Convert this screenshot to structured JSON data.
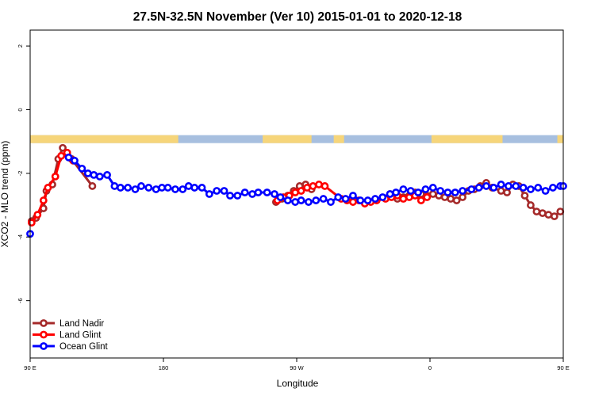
{
  "chart_data": {
    "type": "line",
    "title": "27.5N-32.5N November (Ver 10)   2015-01-01 to 2020-12-18",
    "xlabel": "Longitude",
    "ylabel": "XCO2 - MLO trend (ppm)",
    "xlim": [
      -90,
      270
    ],
    "ylim": [
      -7.8,
      2.5
    ],
    "x_ticks": [
      {
        "value": -90,
        "label": "90 E"
      },
      {
        "value": 0,
        "label": "180"
      },
      {
        "value": 90,
        "label": "90 W"
      },
      {
        "value": 180,
        "label": "0"
      },
      {
        "value": 270,
        "label": "90 E"
      }
    ],
    "y_ticks": [
      {
        "value": 2,
        "label": "2"
      },
      {
        "value": 0,
        "label": "0"
      },
      {
        "value": -2,
        "label": "-2"
      },
      {
        "value": -4,
        "label": "-4"
      },
      {
        "value": -6,
        "label": "-6"
      }
    ],
    "grid": false,
    "legend_position": "bottom-left",
    "land_ocean_strip": {
      "y_range": [
        -0.8,
        -1.05
      ],
      "land_color": "#f6d57a",
      "ocean_color": "#a7bfdf",
      "land_x_ranges": [
        [
          -90,
          10
        ],
        [
          67,
          100
        ],
        [
          115,
          122
        ],
        [
          181,
          229
        ],
        [
          266,
          270
        ]
      ]
    },
    "series": [
      {
        "name": "Land Nadir",
        "color": "#a52a2a",
        "x": [
          -89,
          -86,
          -81,
          -79,
          -75,
          -71,
          -68,
          -65,
          -62,
          -48,
          76,
          80,
          84,
          88,
          92,
          96,
          100,
          153,
          158,
          162,
          166,
          170,
          174,
          178,
          182,
          186,
          190,
          194,
          198,
          202,
          206,
          210,
          214,
          218,
          222,
          228,
          232,
          236,
          240,
          244,
          248,
          252,
          256,
          260,
          264,
          268
        ],
        "y": [
          -3.5,
          -3.4,
          -3.1,
          -2.55,
          -2.35,
          -1.55,
          -1.2,
          -1.4,
          -1.55,
          -2.4,
          -2.9,
          -2.8,
          -2.7,
          -2.55,
          -2.4,
          -2.35,
          -2.5,
          -2.65,
          -2.8,
          -2.75,
          -2.7,
          -2.6,
          -2.65,
          -2.7,
          -2.65,
          -2.7,
          -2.75,
          -2.8,
          -2.85,
          -2.75,
          -2.55,
          -2.5,
          -2.4,
          -2.3,
          -2.45,
          -2.55,
          -2.6,
          -2.35,
          -2.4,
          -2.7,
          -3.0,
          -3.2,
          -3.25,
          -3.3,
          -3.35,
          -3.2
        ]
      },
      {
        "name": "Land Glint",
        "color": "#ff0000",
        "x": [
          -89,
          -85,
          -81,
          -78,
          -73,
          -69,
          -65,
          -61,
          77,
          81,
          85,
          89,
          93,
          97,
          101,
          105,
          109,
          120,
          124,
          128,
          132,
          136,
          140,
          144,
          150,
          154,
          158,
          162,
          166,
          170,
          174,
          178
        ],
        "y": [
          -3.55,
          -3.3,
          -2.85,
          -2.45,
          -2.1,
          -1.45,
          -1.35,
          -1.6,
          -2.85,
          -2.75,
          -2.7,
          -2.6,
          -2.55,
          -2.45,
          -2.4,
          -2.35,
          -2.4,
          -2.8,
          -2.85,
          -2.9,
          -2.85,
          -2.95,
          -2.9,
          -2.85,
          -2.8,
          -2.75,
          -2.7,
          -2.8,
          -2.75,
          -2.7,
          -2.85,
          -2.75
        ]
      },
      {
        "name": "Ocean Glint",
        "color": "#0000ff",
        "x": [
          -90,
          -64,
          -60,
          -55,
          -51,
          -47,
          -43,
          -38,
          -33,
          -29,
          -24,
          -19,
          -15,
          -10,
          -5,
          -1,
          3,
          8,
          13,
          17,
          21,
          26,
          31,
          36,
          41,
          45,
          50,
          55,
          60,
          64,
          70,
          75,
          79,
          84,
          89,
          93,
          98,
          103,
          108,
          113,
          118,
          123,
          128,
          133,
          138,
          143,
          148,
          153,
          157,
          162,
          167,
          172,
          177,
          182,
          187,
          192,
          197,
          202,
          208,
          213,
          218,
          223,
          228,
          233,
          238,
          243,
          248,
          253,
          258,
          263,
          268,
          270
        ],
        "y": [
          -3.9,
          -1.5,
          -1.6,
          -1.85,
          -2.0,
          -2.05,
          -2.1,
          -2.05,
          -2.4,
          -2.45,
          -2.45,
          -2.5,
          -2.4,
          -2.45,
          -2.5,
          -2.45,
          -2.45,
          -2.5,
          -2.5,
          -2.4,
          -2.45,
          -2.45,
          -2.65,
          -2.55,
          -2.55,
          -2.7,
          -2.7,
          -2.6,
          -2.65,
          -2.6,
          -2.6,
          -2.65,
          -2.75,
          -2.85,
          -2.9,
          -2.85,
          -2.9,
          -2.85,
          -2.8,
          -2.9,
          -2.75,
          -2.8,
          -2.7,
          -2.85,
          -2.85,
          -2.8,
          -2.75,
          -2.65,
          -2.6,
          -2.5,
          -2.55,
          -2.6,
          -2.5,
          -2.45,
          -2.55,
          -2.6,
          -2.6,
          -2.55,
          -2.5,
          -2.45,
          -2.4,
          -2.45,
          -2.35,
          -2.4,
          -2.4,
          -2.45,
          -2.5,
          -2.45,
          -2.55,
          -2.45,
          -2.4,
          -2.4
        ]
      }
    ]
  }
}
